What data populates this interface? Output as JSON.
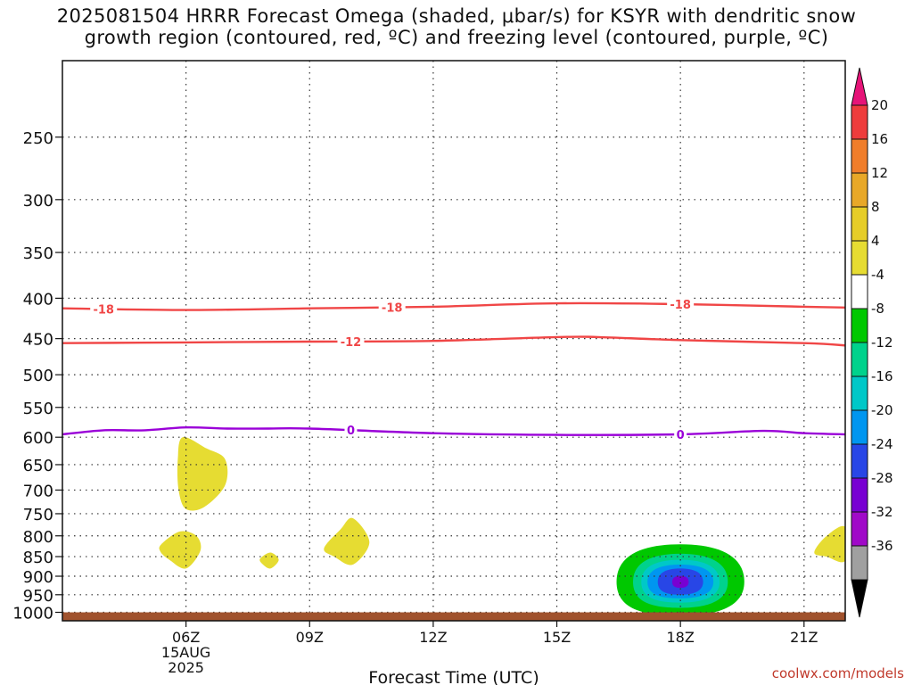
{
  "title": {
    "line1": "2025081504 HRRR Forecast Omega (shaded, μbar/s) for KSYR with dendritic snow",
    "line2": "growth region (contoured, red, ºC) and freezing level (contoured, purple, ºC)"
  },
  "credit": "coolwx.com/models",
  "chart_data": {
    "type": "heatmap",
    "xlabel": "Forecast Time (UTC)",
    "ylabel": "",
    "x_axis": {
      "unit": "hours (UTC) from 2025-08-15 00Z",
      "range": [
        3.0,
        22.0
      ],
      "ticks": [
        {
          "value": 6,
          "label": "06Z",
          "sub": [
            "15AUG",
            "2025"
          ]
        },
        {
          "value": 9,
          "label": "09Z"
        },
        {
          "value": 12,
          "label": "12Z"
        },
        {
          "value": 15,
          "label": "15Z"
        },
        {
          "value": 18,
          "label": "18Z"
        },
        {
          "value": 21,
          "label": "21Z"
        }
      ]
    },
    "y_axis": {
      "unit": "hPa",
      "scale": "log",
      "reversed": true,
      "range": [
        200,
        1025
      ],
      "ticks": [
        250,
        300,
        350,
        400,
        450,
        500,
        550,
        600,
        650,
        700,
        750,
        800,
        850,
        900,
        950,
        1000
      ]
    },
    "grid": true,
    "ground": {
      "from_hPa": 1000,
      "to_hPa": 1025,
      "color": "#a0522d"
    },
    "omega_regions": [
      {
        "fill": "#e6dc32",
        "level": "4 to 8",
        "points": [
          [
            5.92,
            600
          ],
          [
            6.5,
            620
          ],
          [
            6.95,
            640
          ],
          [
            6.95,
            690
          ],
          [
            6.45,
            735
          ],
          [
            6.0,
            740
          ],
          [
            5.82,
            700
          ],
          [
            5.8,
            640
          ]
        ]
      },
      {
        "fill": "#e6dc32",
        "level": "4 to 8",
        "points": [
          [
            5.4,
            820
          ],
          [
            5.85,
            790
          ],
          [
            6.25,
            800
          ],
          [
            6.35,
            835
          ],
          [
            6.0,
            880
          ],
          [
            5.6,
            858
          ],
          [
            5.38,
            838
          ]
        ]
      },
      {
        "fill": "#e6dc32",
        "level": "4 to 8",
        "points": [
          [
            7.8,
            855
          ],
          [
            8.05,
            840
          ],
          [
            8.25,
            858
          ],
          [
            8.05,
            880
          ],
          [
            7.85,
            868
          ]
        ]
      },
      {
        "fill": "#e6dc32",
        "level": "4 to 8",
        "points": [
          [
            9.35,
            830
          ],
          [
            9.75,
            785
          ],
          [
            10.05,
            760
          ],
          [
            10.45,
            815
          ],
          [
            10.05,
            870
          ],
          [
            9.6,
            850
          ]
        ]
      },
      {
        "fill": "#e6dc32",
        "level": "4 to 8",
        "points": [
          [
            21.25,
            840
          ],
          [
            21.55,
            800
          ],
          [
            22.0,
            780
          ],
          [
            22.0,
            860
          ],
          [
            21.55,
            850
          ]
        ]
      }
    ],
    "omega_negative_core": {
      "center": [
        18.0,
        915
      ],
      "levels": [
        {
          "level": "-4 to -8",
          "fill": "#00c800",
          "rx_hours": 1.55,
          "ry_hPa": 95
        },
        {
          "level": "-8 to -12",
          "fill": "#00d28c",
          "rx_hours": 1.15,
          "ry_hPa": 72
        },
        {
          "level": "-12 to -16",
          "fill": "#00c8c8",
          "rx_hours": 0.95,
          "ry_hPa": 57
        },
        {
          "level": "-16 to -20",
          "fill": "#0096f0",
          "rx_hours": 0.8,
          "ry_hPa": 45
        },
        {
          "level": "-20 to -24",
          "fill": "#2846e6",
          "rx_hours": 0.55,
          "ry_hPa": 35
        },
        {
          "level": "-24 to -28",
          "fill": "#7800d2",
          "rx_hours": 0.2,
          "ry_hPa": 16
        }
      ]
    },
    "temperature_contours": [
      {
        "label": "-18",
        "color": "#f04646",
        "points": [
          [
            3.0,
            412
          ],
          [
            6.0,
            414
          ],
          [
            9.0,
            412
          ],
          [
            12.0,
            410
          ],
          [
            15.0,
            406
          ],
          [
            18.0,
            407
          ],
          [
            21.0,
            410
          ],
          [
            22.0,
            411
          ]
        ],
        "label_x": [
          4.0,
          11.0,
          18.0
        ]
      },
      {
        "label": "-12",
        "color": "#f04646",
        "points": [
          [
            3.0,
            456
          ],
          [
            6.0,
            455
          ],
          [
            9.0,
            454
          ],
          [
            12.0,
            453
          ],
          [
            15.0,
            448
          ],
          [
            16.0,
            448
          ],
          [
            18.0,
            452
          ],
          [
            21.0,
            456
          ],
          [
            22.0,
            459
          ]
        ],
        "label_x": [
          10.0
        ]
      },
      {
        "label": "0",
        "color": "#9a00d8",
        "points": [
          [
            3.0,
            595
          ],
          [
            4.0,
            588
          ],
          [
            5.0,
            588
          ],
          [
            6.0,
            583
          ],
          [
            7.0,
            585
          ],
          [
            8.0,
            585
          ],
          [
            9.0,
            585
          ],
          [
            12.0,
            593
          ],
          [
            15.0,
            596
          ],
          [
            18.0,
            595
          ],
          [
            20.0,
            589
          ],
          [
            21.0,
            593
          ],
          [
            22.0,
            595
          ]
        ],
        "label_x": [
          10.0,
          18.0
        ]
      }
    ],
    "colorbar": {
      "unit": "μbar/s",
      "top_arrow_color": "#e61478",
      "bottom_arrow_color": "#000000",
      "bands": [
        {
          "color": "#ee3c3c",
          "label": "20"
        },
        {
          "color": "#f07d2a",
          "label": "16"
        },
        {
          "color": "#e8a828",
          "label": "12"
        },
        {
          "color": "#e6cd28",
          "label": "8"
        },
        {
          "color": "#e6dc32",
          "label": "4"
        },
        {
          "color": "#ffffff",
          "label": "-4"
        },
        {
          "color": "#00c800",
          "label": "-8"
        },
        {
          "color": "#00d28c",
          "label": "-12"
        },
        {
          "color": "#00c8c8",
          "label": "-16"
        },
        {
          "color": "#0096f0",
          "label": "-20"
        },
        {
          "color": "#2846e6",
          "label": "-24"
        },
        {
          "color": "#7800d2",
          "label": "-28"
        },
        {
          "color": "#a00ac8",
          "label": "-32"
        },
        {
          "color": "#a0a0a0",
          "label": "-36"
        }
      ]
    }
  }
}
